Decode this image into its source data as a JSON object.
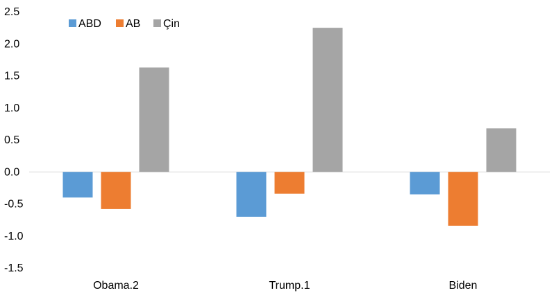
{
  "chart_data": {
    "type": "bar",
    "categories": [
      "Obama.2",
      "Trump.1",
      "Biden"
    ],
    "series": [
      {
        "name": "ABD",
        "color": "#5B9BD5",
        "values": [
          -0.4,
          -0.7,
          -0.35
        ]
      },
      {
        "name": "AB",
        "color": "#ED7D31",
        "values": [
          -0.58,
          -0.34,
          -0.84
        ]
      },
      {
        "name": "Çin",
        "color": "#A5A5A5",
        "values": [
          1.63,
          2.25,
          0.68
        ]
      }
    ],
    "ylim": [
      -1.5,
      2.5
    ],
    "yticks": [
      "2.5",
      "2.0",
      "1.5",
      "1.0",
      "0.5",
      "0.0",
      "-0.5",
      "-1.0",
      "-1.5"
    ],
    "ytick_values": [
      2.5,
      2.0,
      1.5,
      1.0,
      0.5,
      0.0,
      -0.5,
      -1.0,
      -1.5
    ],
    "legend_position": "top-left",
    "grid": false,
    "title": "",
    "xlabel": "",
    "ylabel": ""
  }
}
